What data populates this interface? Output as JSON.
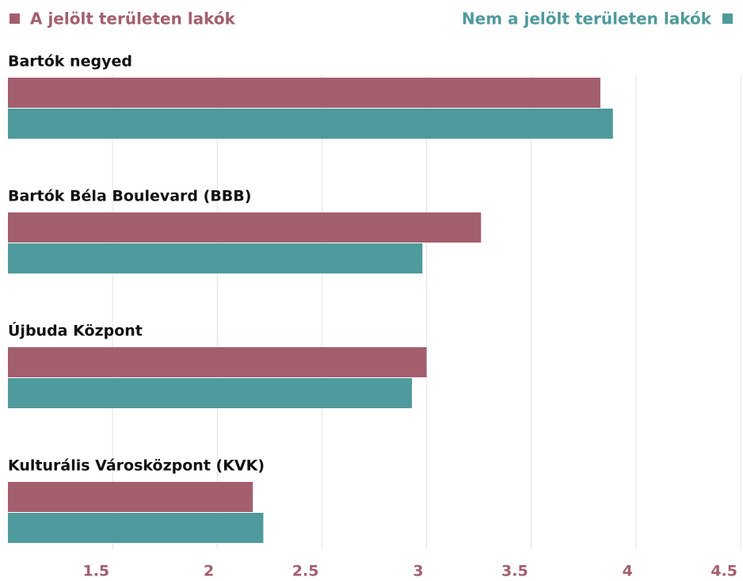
{
  "chart_data": {
    "type": "bar",
    "orientation": "horizontal",
    "categories": [
      "Bartók negyed",
      "Bartók Béla Boulevard (BBB)",
      "Újbuda Központ",
      "Kulturális Városközpont (KVK)"
    ],
    "series": [
      {
        "name": "A jelölt területen lakók",
        "color": "#a35f6e",
        "values": [
          3.83,
          3.26,
          3.0,
          2.17
        ]
      },
      {
        "name": "Nem a jelölt területen lakók",
        "color": "#4f9a9c",
        "values": [
          3.89,
          2.98,
          2.93,
          2.22
        ]
      }
    ],
    "xlim": [
      1,
      4.5
    ],
    "xticks": [
      1.5,
      2,
      2.5,
      3,
      3.5,
      4,
      4.5
    ],
    "grid": true,
    "tick_color": "#a35f6e"
  }
}
